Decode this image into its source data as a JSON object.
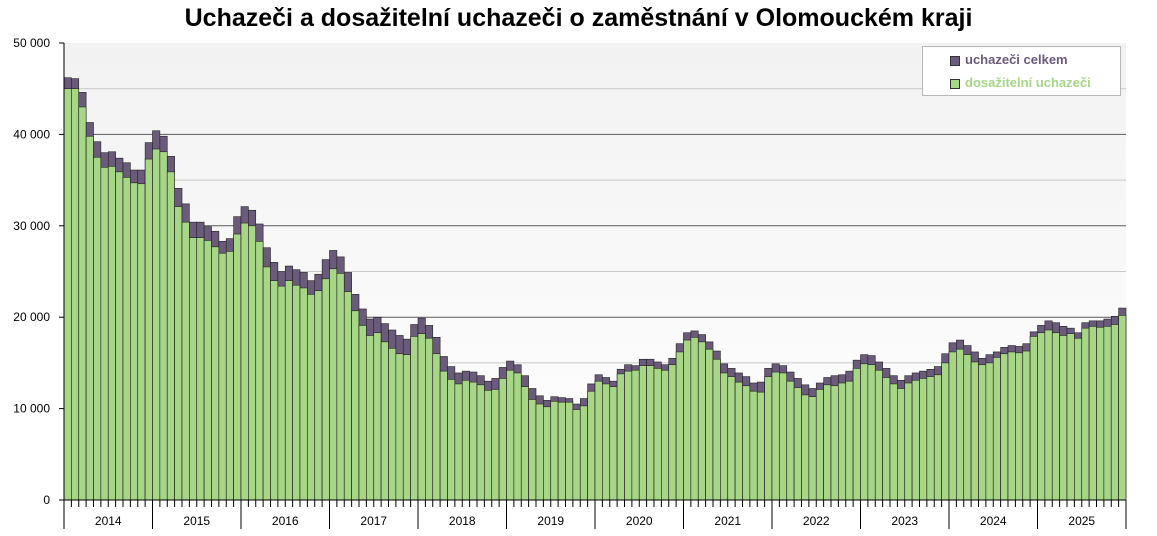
{
  "chart_data": {
    "type": "bar",
    "title": "Uchazeči a dosažitelní uchazeči o zaměstnání v Olomouckém kraji",
    "xlabel": "",
    "ylabel": "",
    "ylim": [
      0,
      50000
    ],
    "yticks": [
      0,
      10000,
      20000,
      30000,
      40000,
      50000
    ],
    "ytick_labels": [
      "0",
      "10 000",
      "20 000",
      "30 000",
      "40 000",
      "50 000"
    ],
    "grid": true,
    "legend_position": "top-right",
    "year_labels": [
      "2014",
      "2015",
      "2016",
      "2017",
      "2018",
      "2019",
      "2020",
      "2021",
      "2022",
      "2023",
      "2024",
      "2025"
    ],
    "series": [
      {
        "name": "uchazeči celkem",
        "color": "#6b5b7b",
        "values": [
          46200,
          46100,
          44600,
          41300,
          39200,
          38000,
          38100,
          37400,
          36900,
          36100,
          36100,
          39100,
          40400,
          39800,
          37600,
          34100,
          32400,
          30400,
          30400,
          29900,
          29400,
          28300,
          28600,
          31000,
          32100,
          31700,
          30200,
          27600,
          26000,
          25000,
          25600,
          25200,
          24900,
          24000,
          24700,
          26300,
          27300,
          26600,
          24900,
          22500,
          20900,
          19800,
          20000,
          19300,
          18600,
          18000,
          17600,
          19200,
          19900,
          19100,
          17800,
          15700,
          14600,
          13900,
          14100,
          14000,
          13600,
          13000,
          13300,
          14500,
          15200,
          14800,
          13600,
          12200,
          11400,
          10900,
          11300,
          11200,
          11100,
          10500,
          11100,
          12700,
          13700,
          13400,
          13000,
          14300,
          14800,
          14700,
          15400,
          15400,
          15100,
          14800,
          15500,
          17100,
          18300,
          18500,
          18100,
          17300,
          16300,
          14900,
          14400,
          13900,
          13500,
          12800,
          12900,
          14400,
          14900,
          14700,
          14000,
          13300,
          12600,
          12200,
          12800,
          13400,
          13600,
          13700,
          14100,
          15300,
          15900,
          15800,
          15100,
          14400,
          13600,
          13100,
          13600,
          13900,
          14100,
          14300,
          14600,
          16000,
          17200,
          17500,
          16900,
          16200,
          15500,
          15900,
          16200,
          16700,
          16900,
          16800,
          17100,
          18400,
          19100,
          19600,
          19400,
          19000,
          18800,
          18300,
          19400,
          19600,
          19600,
          19800,
          20100,
          21000
        ]
      },
      {
        "name": "dosažitelní uchazeči",
        "color": "#a6d686",
        "values": [
          45000,
          45000,
          43000,
          39800,
          37500,
          36400,
          36500,
          35900,
          35300,
          34700,
          34600,
          37300,
          38400,
          38100,
          35900,
          32100,
          30400,
          28700,
          28700,
          28400,
          27700,
          27000,
          27200,
          29100,
          30300,
          30000,
          28300,
          25500,
          24000,
          23400,
          24000,
          23500,
          23200,
          22500,
          22900,
          24200,
          25300,
          24800,
          22800,
          20700,
          19100,
          18000,
          18300,
          17300,
          16600,
          16000,
          15900,
          17900,
          18200,
          17700,
          16000,
          14100,
          13200,
          12700,
          13100,
          12900,
          12600,
          12000,
          12100,
          13300,
          14200,
          13900,
          12400,
          11000,
          10500,
          10200,
          10800,
          10700,
          10700,
          9900,
          10300,
          11900,
          13000,
          12700,
          12400,
          13800,
          14100,
          14200,
          14700,
          14700,
          14400,
          14200,
          14800,
          16200,
          17500,
          17800,
          17300,
          16500,
          15400,
          13900,
          13500,
          12900,
          12500,
          11900,
          11800,
          13500,
          14000,
          13900,
          13000,
          12300,
          11500,
          11300,
          12100,
          12600,
          12500,
          12800,
          13000,
          14400,
          14900,
          14800,
          14200,
          13400,
          12700,
          12200,
          12800,
          13100,
          13300,
          13500,
          13700,
          15000,
          16200,
          16500,
          15900,
          15100,
          14800,
          15000,
          15600,
          16000,
          16200,
          16100,
          16300,
          17900,
          18300,
          18600,
          18300,
          18000,
          18200,
          17700,
          18800,
          19000,
          18900,
          19000,
          19200,
          20200
        ]
      }
    ]
  }
}
